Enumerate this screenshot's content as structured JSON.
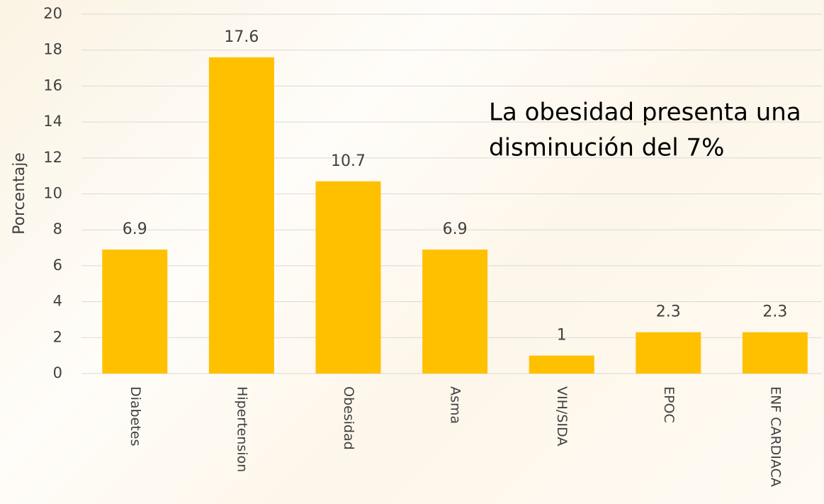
{
  "chart_data": {
    "type": "bar",
    "y_label": "Porcentaje",
    "annotation": [
      "La obesidad presenta una",
      "disminución del 7%"
    ],
    "categories": [
      "Diabetes",
      "Hipertension",
      "Obesidad",
      "Asma",
      "VIH/SIDA",
      "EPOC",
      "ENF CARDIACA"
    ],
    "values": [
      6.9,
      17.6,
      10.7,
      6.9,
      1,
      2.3,
      2.3
    ],
    "color": "#ffc000",
    "ylim": [
      0,
      20
    ],
    "yticks": [
      0,
      2,
      4,
      6,
      8,
      10,
      12,
      14,
      16,
      18,
      20
    ],
    "grid": true
  }
}
